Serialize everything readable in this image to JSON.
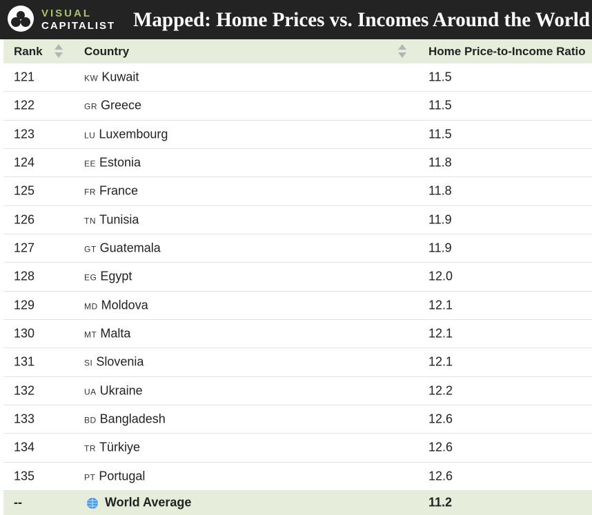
{
  "header": {
    "logo": [
      "VISUAL",
      "CAPITALIST"
    ],
    "title": "Mapped: Home Prices vs. Incomes Around the World"
  },
  "table": {
    "columns": [
      "Rank",
      "Country",
      "Home Price-to-Income Ratio"
    ],
    "rows": [
      [
        "121",
        "KW",
        "Kuwait",
        "11.5"
      ],
      [
        "122",
        "GR",
        "Greece",
        "11.5"
      ],
      [
        "123",
        "LU",
        "Luxembourg",
        "11.5"
      ],
      [
        "124",
        "EE",
        "Estonia",
        "11.8"
      ],
      [
        "125",
        "FR",
        "France",
        "11.8"
      ],
      [
        "126",
        "TN",
        "Tunisia",
        "11.9"
      ],
      [
        "127",
        "GT",
        "Guatemala",
        "11.9"
      ],
      [
        "128",
        "EG",
        "Egypt",
        "12.0"
      ],
      [
        "129",
        "MD",
        "Moldova",
        "12.1"
      ],
      [
        "130",
        "MT",
        "Malta",
        "12.1"
      ],
      [
        "131",
        "SI",
        "Slovenia",
        "12.1"
      ],
      [
        "132",
        "UA",
        "Ukraine",
        "12.2"
      ],
      [
        "133",
        "BD",
        "Bangladesh",
        "12.6"
      ],
      [
        "134",
        "TR",
        "Türkiye",
        "12.6"
      ],
      [
        "135",
        "PT",
        "Portugal",
        "12.6"
      ]
    ],
    "footer": [
      "--",
      "World Average",
      "11.2"
    ]
  }
}
